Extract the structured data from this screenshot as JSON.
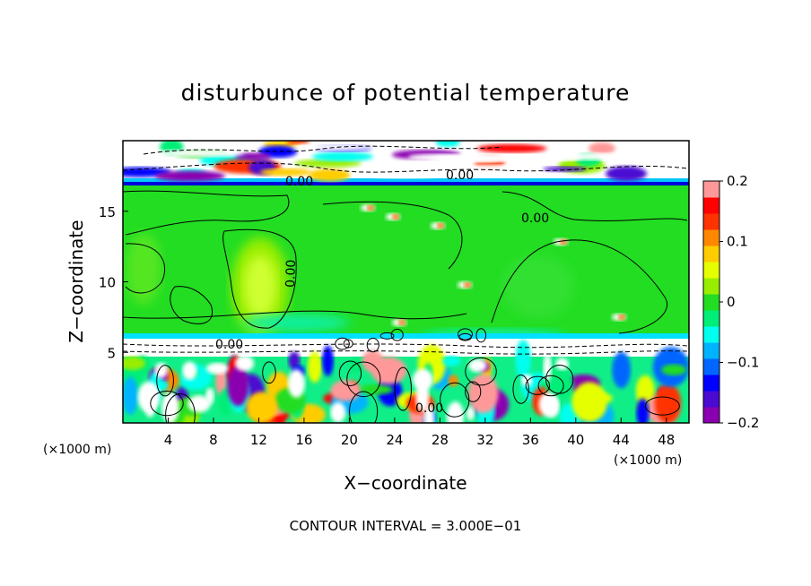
{
  "chart_data": {
    "type": "heatmap",
    "title": "disturbunce of potential temperature",
    "xlabel": "X−coordinate",
    "ylabel": "Z−coordinate",
    "x_unit": "(×1000 m)",
    "y_unit": "(×1000 m)",
    "xlim": [
      0,
      50
    ],
    "ylim": [
      0,
      20
    ],
    "x_ticks": [
      4,
      8,
      12,
      16,
      20,
      24,
      28,
      32,
      36,
      40,
      44,
      48
    ],
    "y_ticks": [
      5,
      10,
      15
    ],
    "colorbar": {
      "min": -0.2,
      "max": 0.2,
      "ticks": [
        0.2,
        0.1,
        0,
        -0.1,
        -0.2
      ],
      "tick_labels": [
        "0.2",
        "0.1",
        "0",
        "−0.1",
        "−0.2"
      ],
      "colors": [
        "#8a00b0",
        "#4b0ad2",
        "#0000ff",
        "#0066ff",
        "#00b3ff",
        "#00ffee",
        "#00ee77",
        "#22dd22",
        "#99ee00",
        "#e6ff00",
        "#ffcc00",
        "#ff8800",
        "#ff3300",
        "#ff0000",
        "#ff9999"
      ]
    },
    "contour_labels": [
      "0.00",
      "0.00",
      "0.00",
      "0.00",
      "0.00",
      "0.00"
    ],
    "footnote": "CONTOUR INTERVAL = 3.000E−01"
  }
}
